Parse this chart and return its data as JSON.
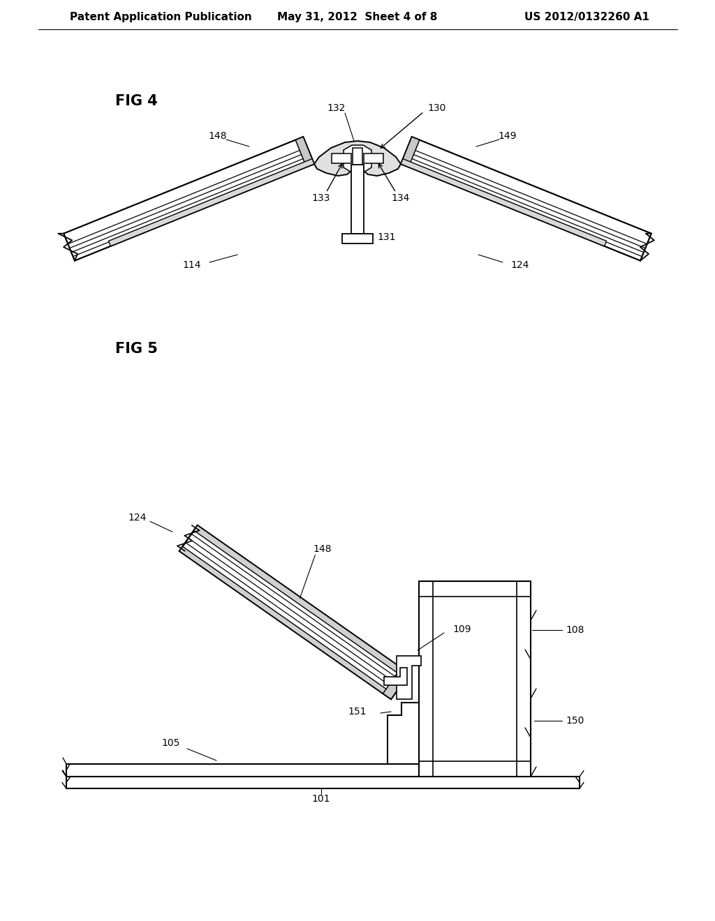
{
  "background_color": "#ffffff",
  "header_left": "Patent Application Publication",
  "header_center": "May 31, 2012  Sheet 4 of 8",
  "header_right": "US 2012/0132260 A1",
  "line_color": "#000000",
  "label_fontsize": 10,
  "fig_label_fontsize": 15,
  "header_fontsize": 11
}
